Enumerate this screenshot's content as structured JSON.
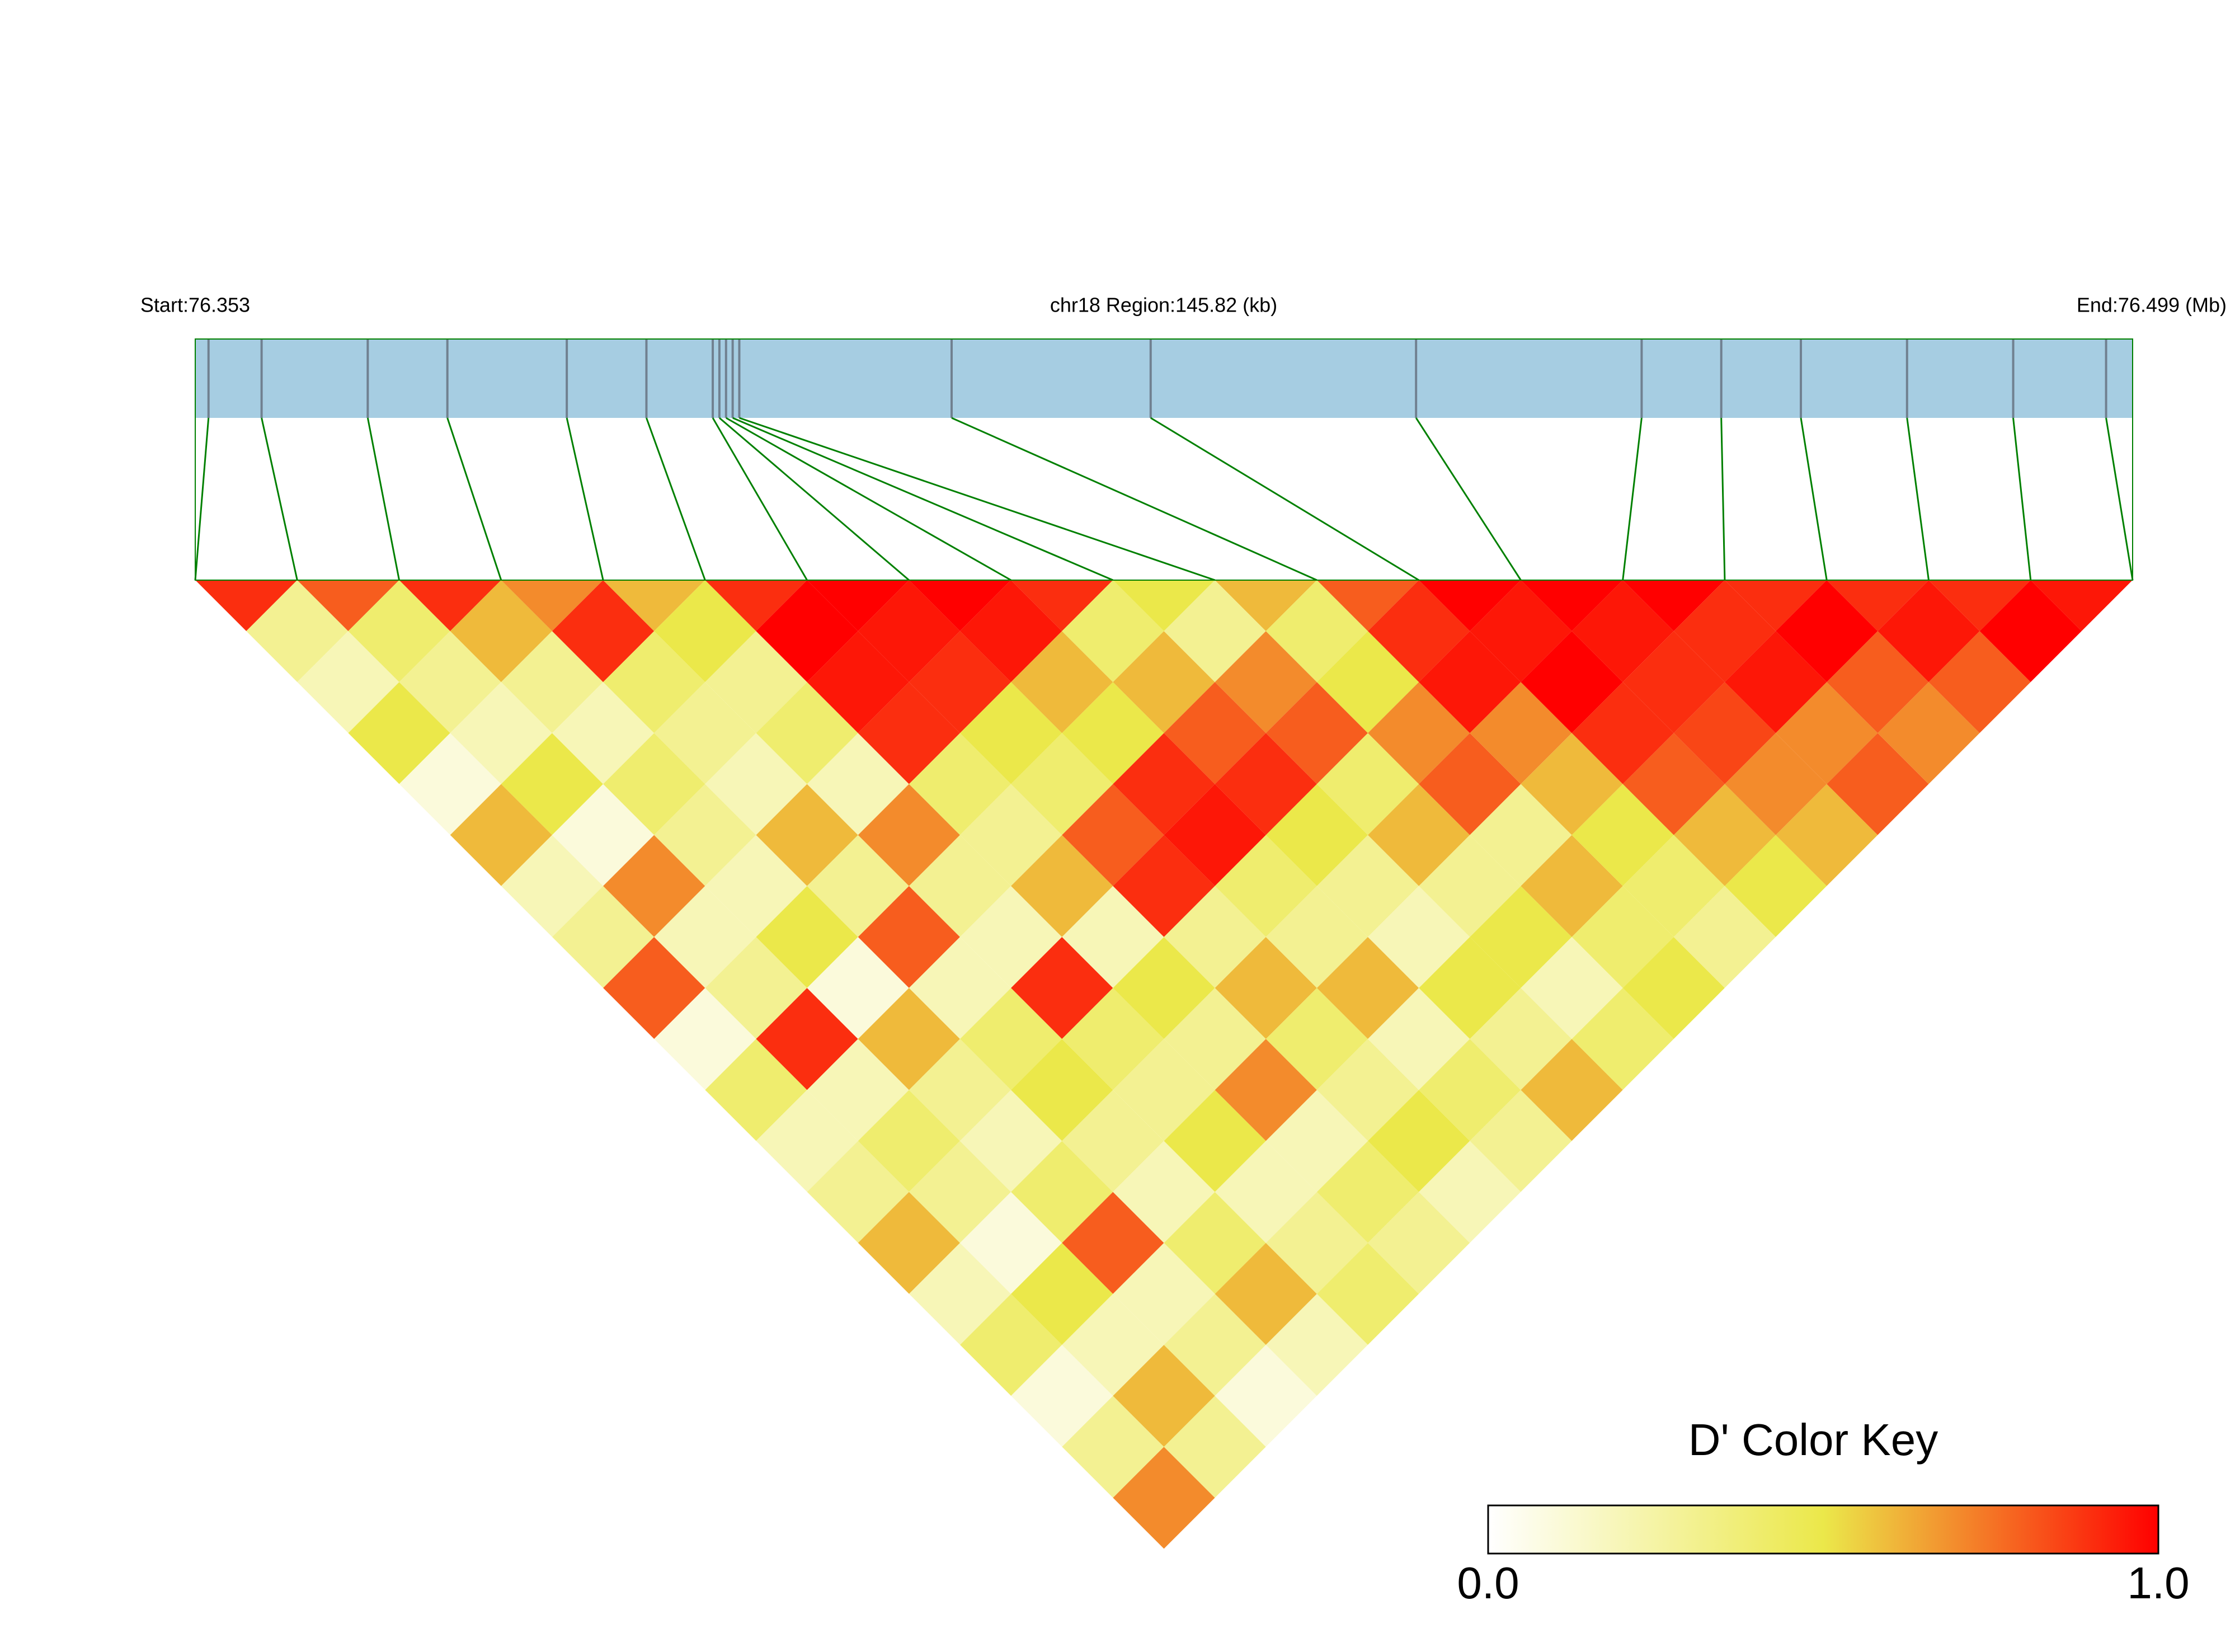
{
  "chart_data": {
    "type": "ld_heatmap",
    "start_label": "Start:76.353",
    "region_label": "chr18 Region:145.82 (kb)",
    "end_label": "End:76.499 (Mb)",
    "xlim": [
      76.353,
      76.499
    ],
    "x": [
      76.354,
      76.358,
      76.366,
      76.372,
      76.381,
      76.387,
      76.392,
      76.3925,
      76.393,
      76.3935,
      76.394,
      76.41,
      76.425,
      76.445,
      76.462,
      76.468,
      76.474,
      76.482,
      76.49,
      76.497
    ],
    "ld": [
      [
        0.9,
        0.3,
        0.2,
        0.5,
        0.1,
        0.6,
        0.2,
        0.3,
        0.8,
        0.1,
        0.4,
        0.2,
        0.3,
        0.6,
        0.2,
        0.4,
        0.1,
        0.3,
        0.7
      ],
      [
        0.8,
        0.4,
        0.3,
        0.2,
        0.5,
        0.1,
        0.7,
        0.2,
        0.3,
        0.9,
        0.2,
        0.4,
        0.3,
        0.1,
        0.5,
        0.2,
        0.6,
        0.3
      ],
      [
        0.9,
        0.6,
        0.3,
        0.2,
        0.4,
        0.3,
        0.2,
        0.5,
        0.1,
        0.6,
        0.3,
        0.2,
        0.4,
        0.8,
        0.2,
        0.3,
        0.1
      ],
      [
        0.7,
        0.9,
        0.4,
        0.3,
        0.2,
        0.6,
        0.3,
        0.8,
        0.2,
        0.4,
        0.5,
        0.3,
        0.2,
        0.4,
        0.6,
        0.2
      ],
      [
        0.6,
        0.5,
        0.3,
        0.4,
        0.2,
        0.7,
        0.3,
        0.2,
        0.9,
        0.4,
        0.3,
        0.5,
        0.2,
        0.3,
        0.4
      ],
      [
        0.9,
        1.0,
        0.95,
        0.9,
        0.4,
        0.3,
        0.6,
        0.2,
        0.5,
        0.3,
        0.7,
        0.2,
        0.4,
        0.3
      ],
      [
        1.0,
        0.95,
        0.9,
        0.5,
        0.4,
        0.8,
        0.9,
        0.3,
        0.6,
        0.4,
        0.3,
        0.5,
        0.2
      ],
      [
        1.0,
        0.95,
        0.6,
        0.5,
        0.9,
        0.95,
        0.4,
        0.3,
        0.6,
        0.2,
        0.4,
        0.3
      ],
      [
        0.9,
        0.4,
        0.6,
        0.8,
        0.9,
        0.5,
        0.3,
        0.2,
        0.5,
        0.3,
        0.6
      ],
      [
        0.5,
        0.3,
        0.7,
        0.8,
        0.4,
        0.6,
        0.3,
        0.5,
        0.2,
        0.4
      ],
      [
        0.6,
        0.4,
        0.5,
        0.7,
        0.8,
        0.3,
        0.6,
        0.4,
        0.5
      ],
      [
        0.8,
        0.9,
        0.95,
        0.7,
        0.6,
        0.5,
        0.4,
        0.3
      ],
      [
        1.0,
        0.95,
        1.0,
        0.9,
        0.8,
        0.6,
        0.5
      ],
      [
        1.0,
        0.95,
        0.9,
        0.85,
        0.7,
        0.6
      ],
      [
        1.0,
        0.9,
        0.95,
        0.7,
        0.8
      ],
      [
        0.9,
        1.0,
        0.8,
        0.7
      ],
      [
        0.9,
        0.95,
        0.8
      ],
      [
        0.9,
        1.0
      ],
      [
        0.95
      ]
    ],
    "colormap": [
      "#ffffff",
      "#ebe84a",
      "#ff0000"
    ],
    "colorbar_title": "D' Color Key",
    "clim": [
      0,
      1
    ],
    "colorbar_ticks": [
      {
        "value": 0,
        "label": "0.0"
      },
      {
        "value": 1,
        "label": "1.0"
      }
    ],
    "snp_bar_color": "#a6cde2",
    "snp_tick_color": "#708090",
    "connector_color": "#008000"
  }
}
